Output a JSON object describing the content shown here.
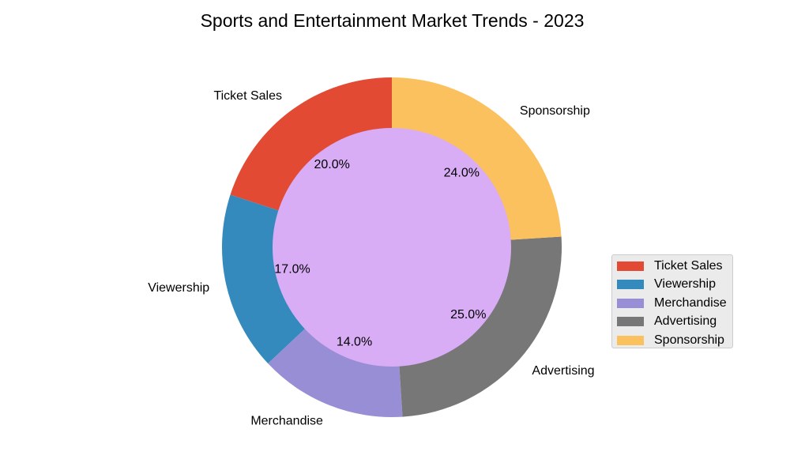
{
  "chart_data": {
    "type": "pie",
    "title": "Sports and Entertainment Market Trends - 2023",
    "donut": true,
    "center_color": "#d8adf5",
    "categories": [
      "Ticket Sales",
      "Viewership",
      "Merchandise",
      "Advertising",
      "Sponsorship"
    ],
    "values": [
      20,
      17,
      14,
      25,
      24
    ],
    "percent_labels": [
      "20.0%",
      "17.0%",
      "14.0%",
      "25.0%",
      "24.0%"
    ],
    "colors": [
      "#e24a33",
      "#348abd",
      "#988ed5",
      "#777777",
      "#fbc15e"
    ],
    "start_angle_deg": 90,
    "direction": "counterclockwise",
    "legend": {
      "placement": "center-right",
      "entries": [
        "Ticket Sales",
        "Viewership",
        "Merchandise",
        "Advertising",
        "Sponsorship"
      ]
    }
  }
}
